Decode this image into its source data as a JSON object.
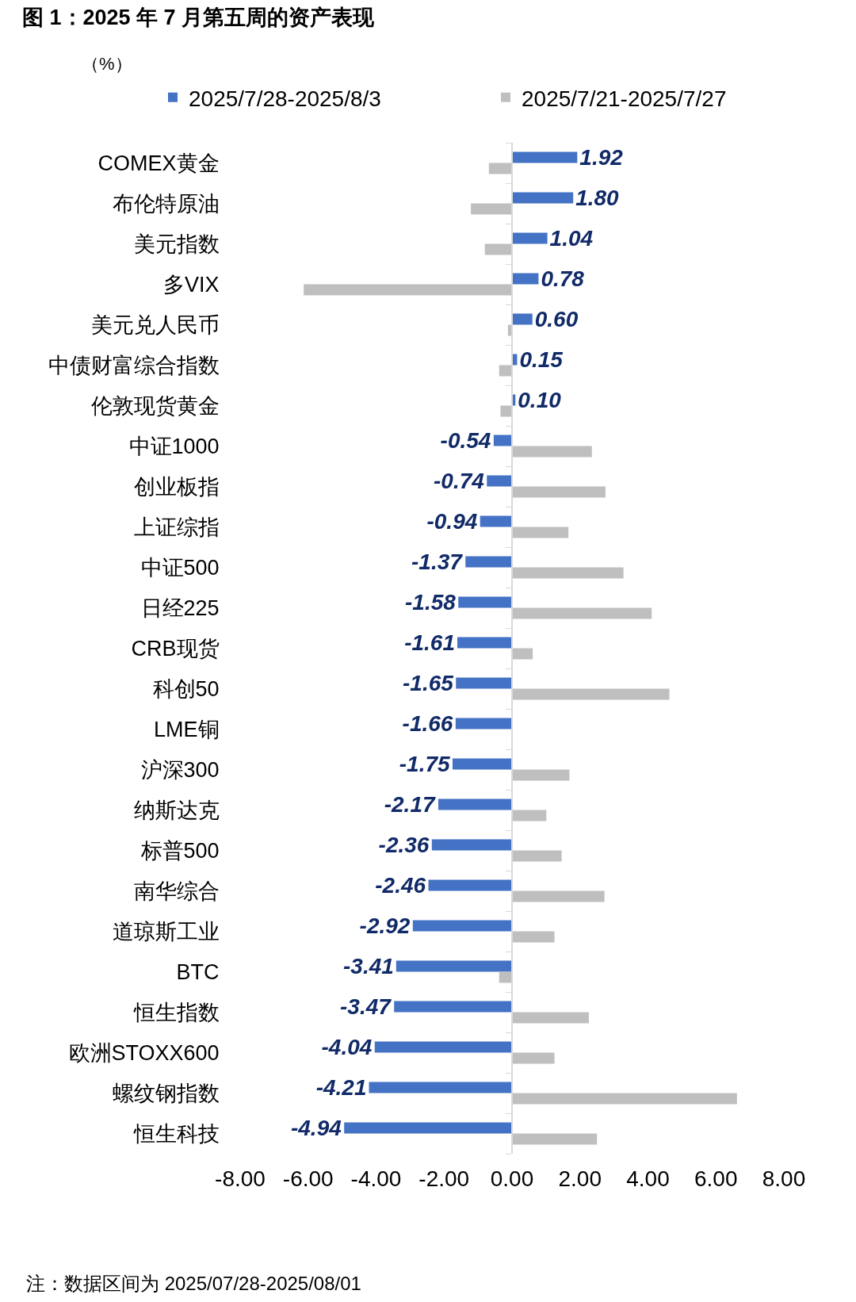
{
  "chart_data": {
    "type": "bar",
    "orientation": "horizontal",
    "title": "图 1：2025 年 7 月第五周的资产表现",
    "annotations": [
      "（%）",
      "注：数据区间为 2025/07/28-2025/08/01"
    ],
    "categories": [
      "COMEX黄金",
      "布伦特原油",
      "美元指数",
      "多VIX",
      "美元兑人民币",
      "中债财富综合指数",
      "伦敦现货黄金",
      "中证1000",
      "创业板指",
      "上证综指",
      "中证500",
      "日经225",
      "CRB现货",
      "科创50",
      "LME铜",
      "沪深300",
      "纳斯达克",
      "标普500",
      "南华综合",
      "道琼斯工业",
      "BTC",
      "恒生指数",
      "欧洲STOXX600",
      "螺纹钢指数",
      "恒生科技"
    ],
    "series": [
      {
        "name": "2025/7/28-2025/8/3",
        "color": "#4472c4",
        "values": [
          1.92,
          1.8,
          1.04,
          0.78,
          0.6,
          0.15,
          0.1,
          -0.54,
          -0.74,
          -0.94,
          -1.37,
          -1.58,
          -1.61,
          -1.65,
          -1.66,
          -1.75,
          -2.17,
          -2.36,
          -2.46,
          -2.92,
          -3.41,
          -3.47,
          -4.04,
          -4.21,
          -4.94
        ],
        "value_labels": [
          "1.92",
          "1.80",
          "1.04",
          "0.78",
          "0.60",
          "0.15",
          "0.10",
          "-0.54",
          "-0.74",
          "-0.94",
          "-1.37",
          "-1.58",
          "-1.61",
          "-1.65",
          "-1.66",
          "-1.75",
          "-2.17",
          "-2.36",
          "-2.46",
          "-2.92",
          "-3.41",
          "-3.47",
          "-4.04",
          "-4.21",
          "-4.94"
        ]
      },
      {
        "name": "2025/7/21-2025/7/27",
        "color": "#bfbfbf",
        "values": [
          -0.68,
          -1.21,
          -0.8,
          -6.13,
          -0.12,
          -0.38,
          -0.34,
          2.35,
          2.75,
          1.66,
          3.28,
          4.11,
          0.61,
          4.63,
          null,
          1.69,
          1.01,
          1.46,
          2.72,
          1.25,
          -0.38,
          2.26,
          1.25,
          6.62,
          2.5
        ]
      }
    ],
    "xlim": [
      -8,
      8
    ],
    "xticks": [
      {
        "value": -8,
        "label": "-8.00"
      },
      {
        "value": -6,
        "label": "-6.00"
      },
      {
        "value": -4,
        "label": "-4.00"
      },
      {
        "value": -2,
        "label": "-2.00"
      },
      {
        "value": 0,
        "label": "0.00"
      },
      {
        "value": 2,
        "label": "2.00"
      },
      {
        "value": 4,
        "label": "4.00"
      },
      {
        "value": 6,
        "label": "6.00"
      },
      {
        "value": 8,
        "label": "8.00"
      }
    ],
    "legend": "top"
  }
}
